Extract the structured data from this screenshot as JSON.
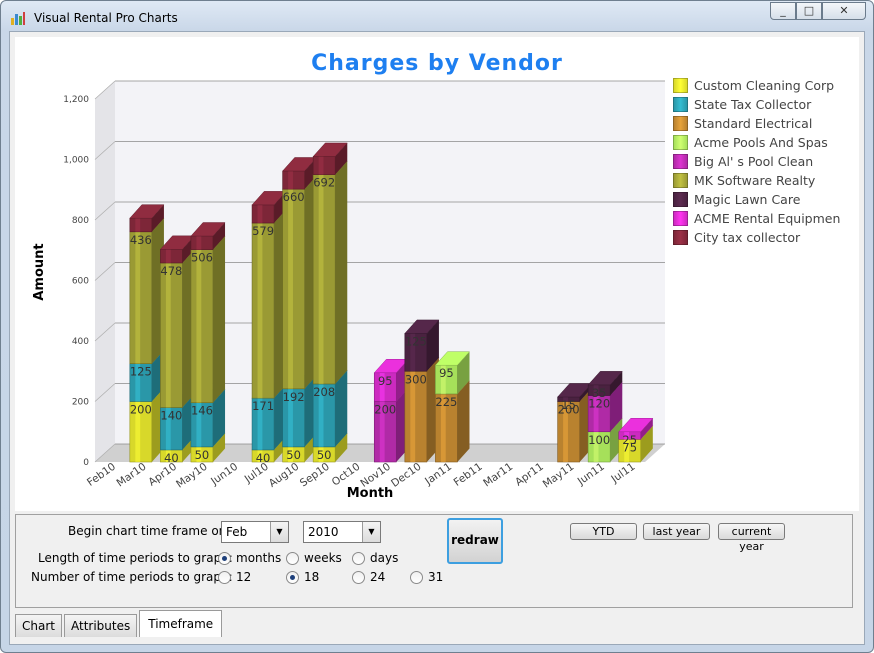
{
  "window": {
    "title": "Visual Rental Pro Charts",
    "buttons": [
      "_",
      "□",
      "✕"
    ]
  },
  "chart_data": {
    "type": "bar",
    "stacked": true,
    "title": "Charges by Vendor",
    "xlabel": "Month",
    "ylabel": "Amount",
    "ylim": [
      0,
      1200
    ],
    "yticks": [
      "0",
      "200",
      "400",
      "600",
      "800",
      "1,000",
      "1,200"
    ],
    "grid": true,
    "legend_position": "right",
    "categories": [
      "Feb10",
      "Mar10",
      "Apr10",
      "May10",
      "Jun10",
      "Jul10",
      "Aug10",
      "Sep10",
      "Oct10",
      "Nov10",
      "Dec10",
      "Jan11",
      "Feb11",
      "Mar11",
      "Apr11",
      "May11",
      "Jun11",
      "Jul11"
    ],
    "series": [
      {
        "name": "Custom Cleaning Corp",
        "color": "#d8d82a",
        "values": [
          0,
          200,
          40,
          50,
          0,
          40,
          50,
          50,
          0,
          0,
          0,
          0,
          0,
          0,
          0,
          0,
          0,
          75
        ]
      },
      {
        "name": "State Tax Collector",
        "color": "#2a97a8",
        "values": [
          0,
          125,
          140,
          146,
          0,
          171,
          192,
          208,
          0,
          0,
          0,
          0,
          0,
          0,
          0,
          0,
          0,
          0
        ]
      },
      {
        "name": "Standard Electrical",
        "color": "#b9822f",
        "values": [
          0,
          0,
          0,
          0,
          0,
          0,
          0,
          0,
          0,
          0,
          300,
          225,
          0,
          0,
          0,
          200,
          0,
          0
        ]
      },
      {
        "name": "Acme Pools And Spas",
        "color": "#a6e05a",
        "values": [
          0,
          0,
          0,
          0,
          0,
          0,
          0,
          0,
          0,
          0,
          0,
          95,
          0,
          0,
          0,
          0,
          100,
          0
        ]
      },
      {
        "name": "Big Al' s Pool Clean",
        "color": "#b02aa6",
        "values": [
          0,
          0,
          0,
          0,
          0,
          0,
          0,
          0,
          0,
          200,
          0,
          0,
          0,
          0,
          0,
          0,
          120,
          0
        ]
      },
      {
        "name": "MK Software Realty",
        "color": "#9a9a34",
        "values": [
          0,
          436,
          478,
          506,
          0,
          579,
          660,
          692,
          0,
          0,
          0,
          0,
          0,
          0,
          0,
          0,
          0,
          0
        ]
      },
      {
        "name": "Magic Lawn Care",
        "color": "#4a2240",
        "values": [
          0,
          0,
          0,
          0,
          0,
          0,
          0,
          0,
          0,
          0,
          125,
          0,
          0,
          0,
          0,
          15,
          35,
          0
        ]
      },
      {
        "name": "ACME Rental Equipmen",
        "color": "#cc2ac0",
        "values": [
          0,
          0,
          0,
          0,
          0,
          0,
          0,
          0,
          0,
          95,
          0,
          0,
          0,
          0,
          0,
          0,
          0,
          25
        ]
      },
      {
        "name": "City tax collector",
        "color": "#7d2638",
        "values": [
          0,
          45,
          45,
          45,
          0,
          60,
          60,
          60,
          0,
          0,
          0,
          0,
          0,
          0,
          0,
          0,
          0,
          0
        ]
      }
    ]
  },
  "controls": {
    "begin_label": "Begin chart time frame on:",
    "month_value": "Feb",
    "year_value": "2010",
    "length_label": "Length of time periods to graph:",
    "length_options": [
      "months",
      "weeks",
      "days"
    ],
    "length_selected": "months",
    "number_label": "Number of time periods to graph:",
    "number_options": [
      "12",
      "18",
      "24",
      "31"
    ],
    "number_selected": "18",
    "redraw": "redraw",
    "ytd": "YTD",
    "last_year": "last year",
    "current_year": "current year"
  },
  "tabs": [
    "Chart",
    "Attributes",
    "Timeframe"
  ],
  "active_tab": "Timeframe"
}
